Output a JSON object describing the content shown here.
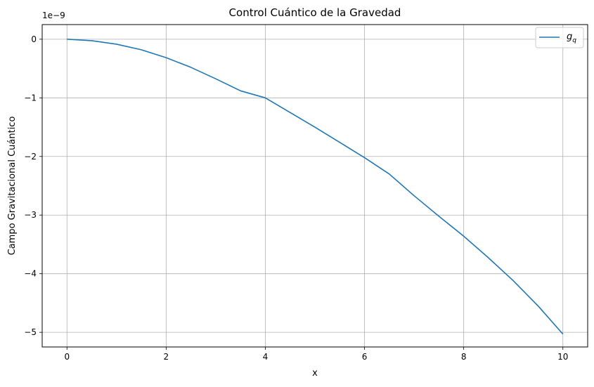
{
  "chart_data": {
    "type": "line",
    "title": "Control Cuántico de la Gravedad",
    "xlabel": "x",
    "ylabel": "Campo Gravitacional Cuántico",
    "offset_label": "1e−9",
    "xlim": [
      -0.5,
      10.5
    ],
    "ylim": [
      -5.25,
      0.25
    ],
    "xticks": [
      0,
      2,
      4,
      6,
      8,
      10
    ],
    "xtick_labels": [
      "0",
      "2",
      "4",
      "6",
      "8",
      "10"
    ],
    "yticks": [
      0,
      -1,
      -2,
      -3,
      -4,
      -5
    ],
    "ytick_labels": [
      "0",
      "−1",
      "−2",
      "−3",
      "−4",
      "−5"
    ],
    "grid": true,
    "legend_position": "top-right",
    "series": [
      {
        "name": "g_q",
        "legend_base": "g",
        "legend_sub": "q",
        "color": "#1f77b4",
        "x": [
          0,
          0.5,
          1,
          1.5,
          2,
          2.5,
          3,
          3.5,
          4,
          4.5,
          5,
          5.5,
          6,
          6.5,
          7,
          7.5,
          8,
          8.5,
          9,
          9.5,
          10
        ],
        "y": [
          0,
          -0.025,
          -0.085,
          -0.18,
          -0.315,
          -0.48,
          -0.675,
          -0.88,
          -1.0,
          -1.25,
          -1.5,
          -1.76,
          -2.02,
          -2.3,
          -2.67,
          -3.02,
          -3.36,
          -3.73,
          -4.12,
          -4.55,
          -5.03
        ]
      }
    ]
  }
}
